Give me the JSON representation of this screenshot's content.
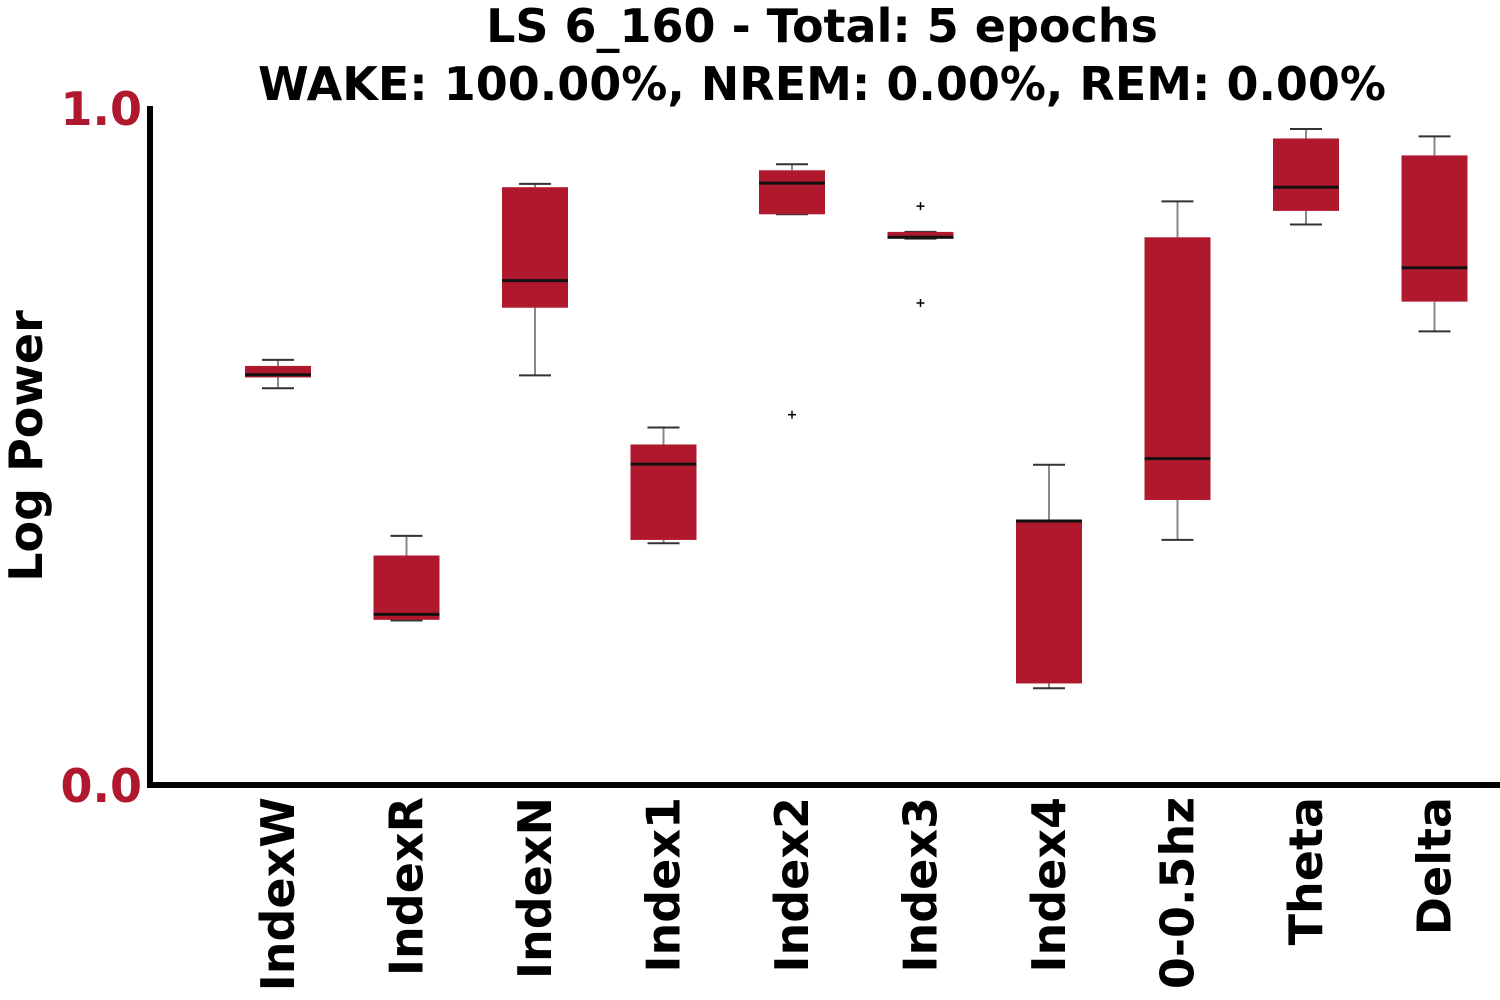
{
  "chart_data": {
    "type": "box",
    "title_line1": "LS 6_160 - Total: 5 epochs",
    "title_line2": "WAKE: 100.00%, NREM: 0.00%, REM: 0.00%",
    "ylabel": "Log Power",
    "xlabel": "",
    "ylim": [
      0.0,
      1.0
    ],
    "yticks": [
      "0.0",
      "1.0"
    ],
    "grid": false,
    "colors": {
      "box_fill": "#b0192d",
      "ytick_color": "#b0192d",
      "whisker": "#888888",
      "median": "#111111",
      "axis": "#000000"
    },
    "categories": [
      "IndexW",
      "IndexR",
      "IndexN",
      "Index1",
      "Index2",
      "Index3",
      "Index4",
      "0-0.5hz",
      "Theta",
      "Delta"
    ],
    "boxes": [
      {
        "label": "IndexW",
        "whislo": 0.586,
        "q1": 0.602,
        "median": 0.606,
        "q3": 0.619,
        "whishi": 0.628,
        "fliers": []
      },
      {
        "label": "IndexR",
        "whislo": 0.243,
        "q1": 0.244,
        "median": 0.252,
        "q3": 0.339,
        "whishi": 0.368,
        "fliers": []
      },
      {
        "label": "IndexN",
        "whislo": 0.605,
        "q1": 0.705,
        "median": 0.745,
        "q3": 0.883,
        "whishi": 0.888,
        "fliers": []
      },
      {
        "label": "Index1",
        "whislo": 0.357,
        "q1": 0.362,
        "median": 0.474,
        "q3": 0.503,
        "whishi": 0.528,
        "fliers": []
      },
      {
        "label": "Index2",
        "whislo": 0.843,
        "q1": 0.843,
        "median": 0.889,
        "q3": 0.908,
        "whishi": 0.917,
        "fliers": [
          0.547
        ]
      },
      {
        "label": "Index3",
        "whislo": 0.807,
        "q1": 0.807,
        "median": 0.809,
        "q3": 0.817,
        "whishi": 0.817,
        "fliers": [
          0.855,
          0.712
        ]
      },
      {
        "label": "Index4",
        "whislo": 0.143,
        "q1": 0.15,
        "median": 0.39,
        "q3": 0.391,
        "whishi": 0.473,
        "fliers": []
      },
      {
        "label": "0-0.5hz",
        "whislo": 0.362,
        "q1": 0.421,
        "median": 0.482,
        "q3": 0.809,
        "whishi": 0.862,
        "fliers": []
      },
      {
        "label": "Theta",
        "whislo": 0.828,
        "q1": 0.848,
        "median": 0.883,
        "q3": 0.955,
        "whishi": 0.969,
        "fliers": []
      },
      {
        "label": "Delta",
        "whislo": 0.67,
        "q1": 0.714,
        "median": 0.764,
        "q3": 0.93,
        "whishi": 0.958,
        "fliers": []
      }
    ]
  }
}
